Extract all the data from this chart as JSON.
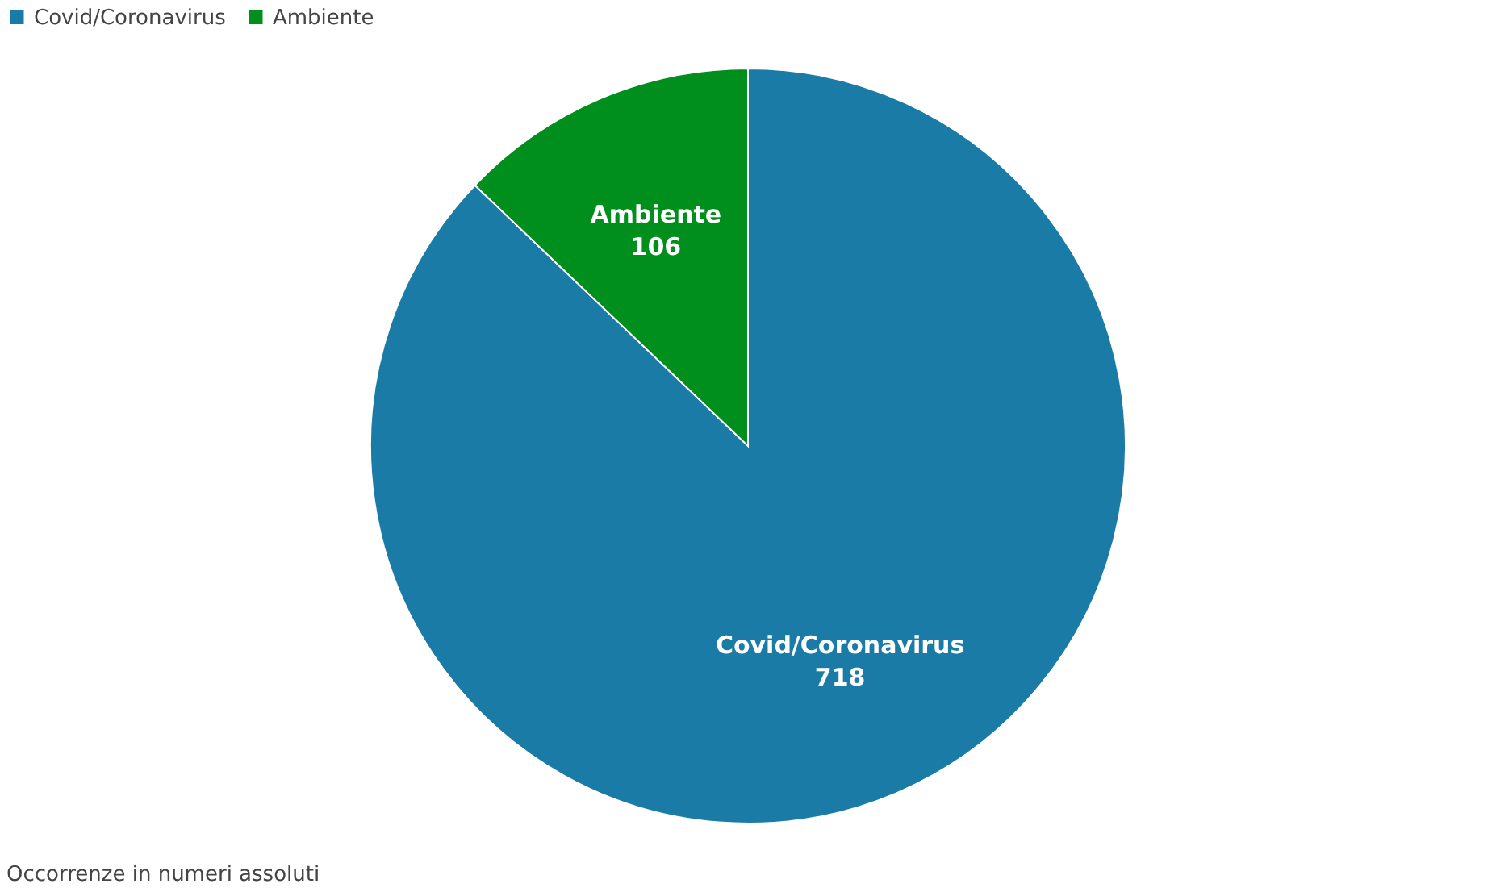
{
  "chart_data": {
    "type": "pie",
    "categories": [
      "Covid/Coronavirus",
      "Ambiente"
    ],
    "values": [
      718,
      106
    ],
    "colors": [
      "#1a7ba6",
      "#008f1c"
    ],
    "data_labels": true,
    "legend": "top left",
    "annotations": [
      "Occorrenze in numeri assoluti"
    ]
  }
}
